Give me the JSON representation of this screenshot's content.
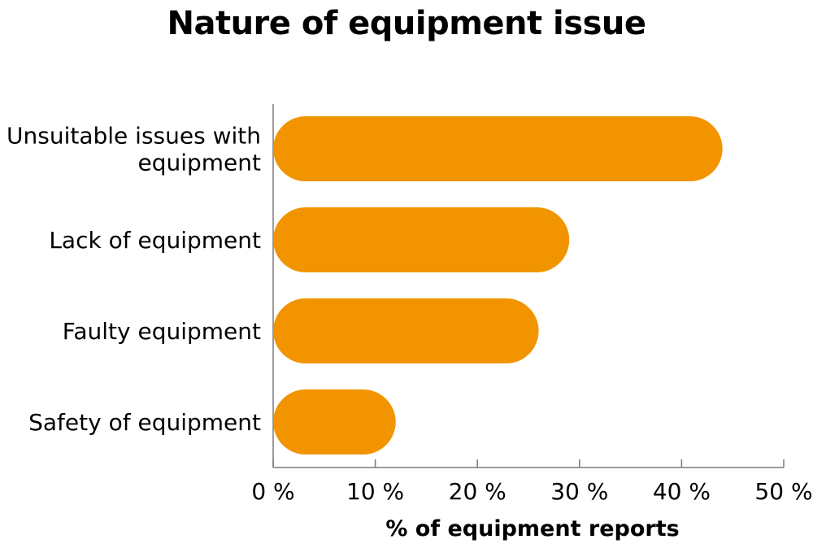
{
  "colors": {
    "bar": "#F29400",
    "axis": "#7a7a7a",
    "text": "#000000"
  },
  "chart_data": {
    "type": "bar",
    "orientation": "horizontal",
    "title": "Nature of equipment issue",
    "xlabel": "% of equipment reports",
    "ylabel": "",
    "categories": [
      [
        "Unsuitable issues with",
        "equipment"
      ],
      [
        "Lack of equipment"
      ],
      [
        "Faulty equipment"
      ],
      [
        "Safety of equipment"
      ]
    ],
    "values": [
      44,
      29,
      26,
      12
    ],
    "xlim": [
      0,
      50
    ],
    "ticks": [
      0,
      10,
      20,
      30,
      40,
      50
    ],
    "tick_labels": [
      "0 %",
      "10 %",
      "20 %",
      "30 %",
      "40 %",
      "50 %"
    ],
    "grid": false,
    "legend": "none"
  }
}
